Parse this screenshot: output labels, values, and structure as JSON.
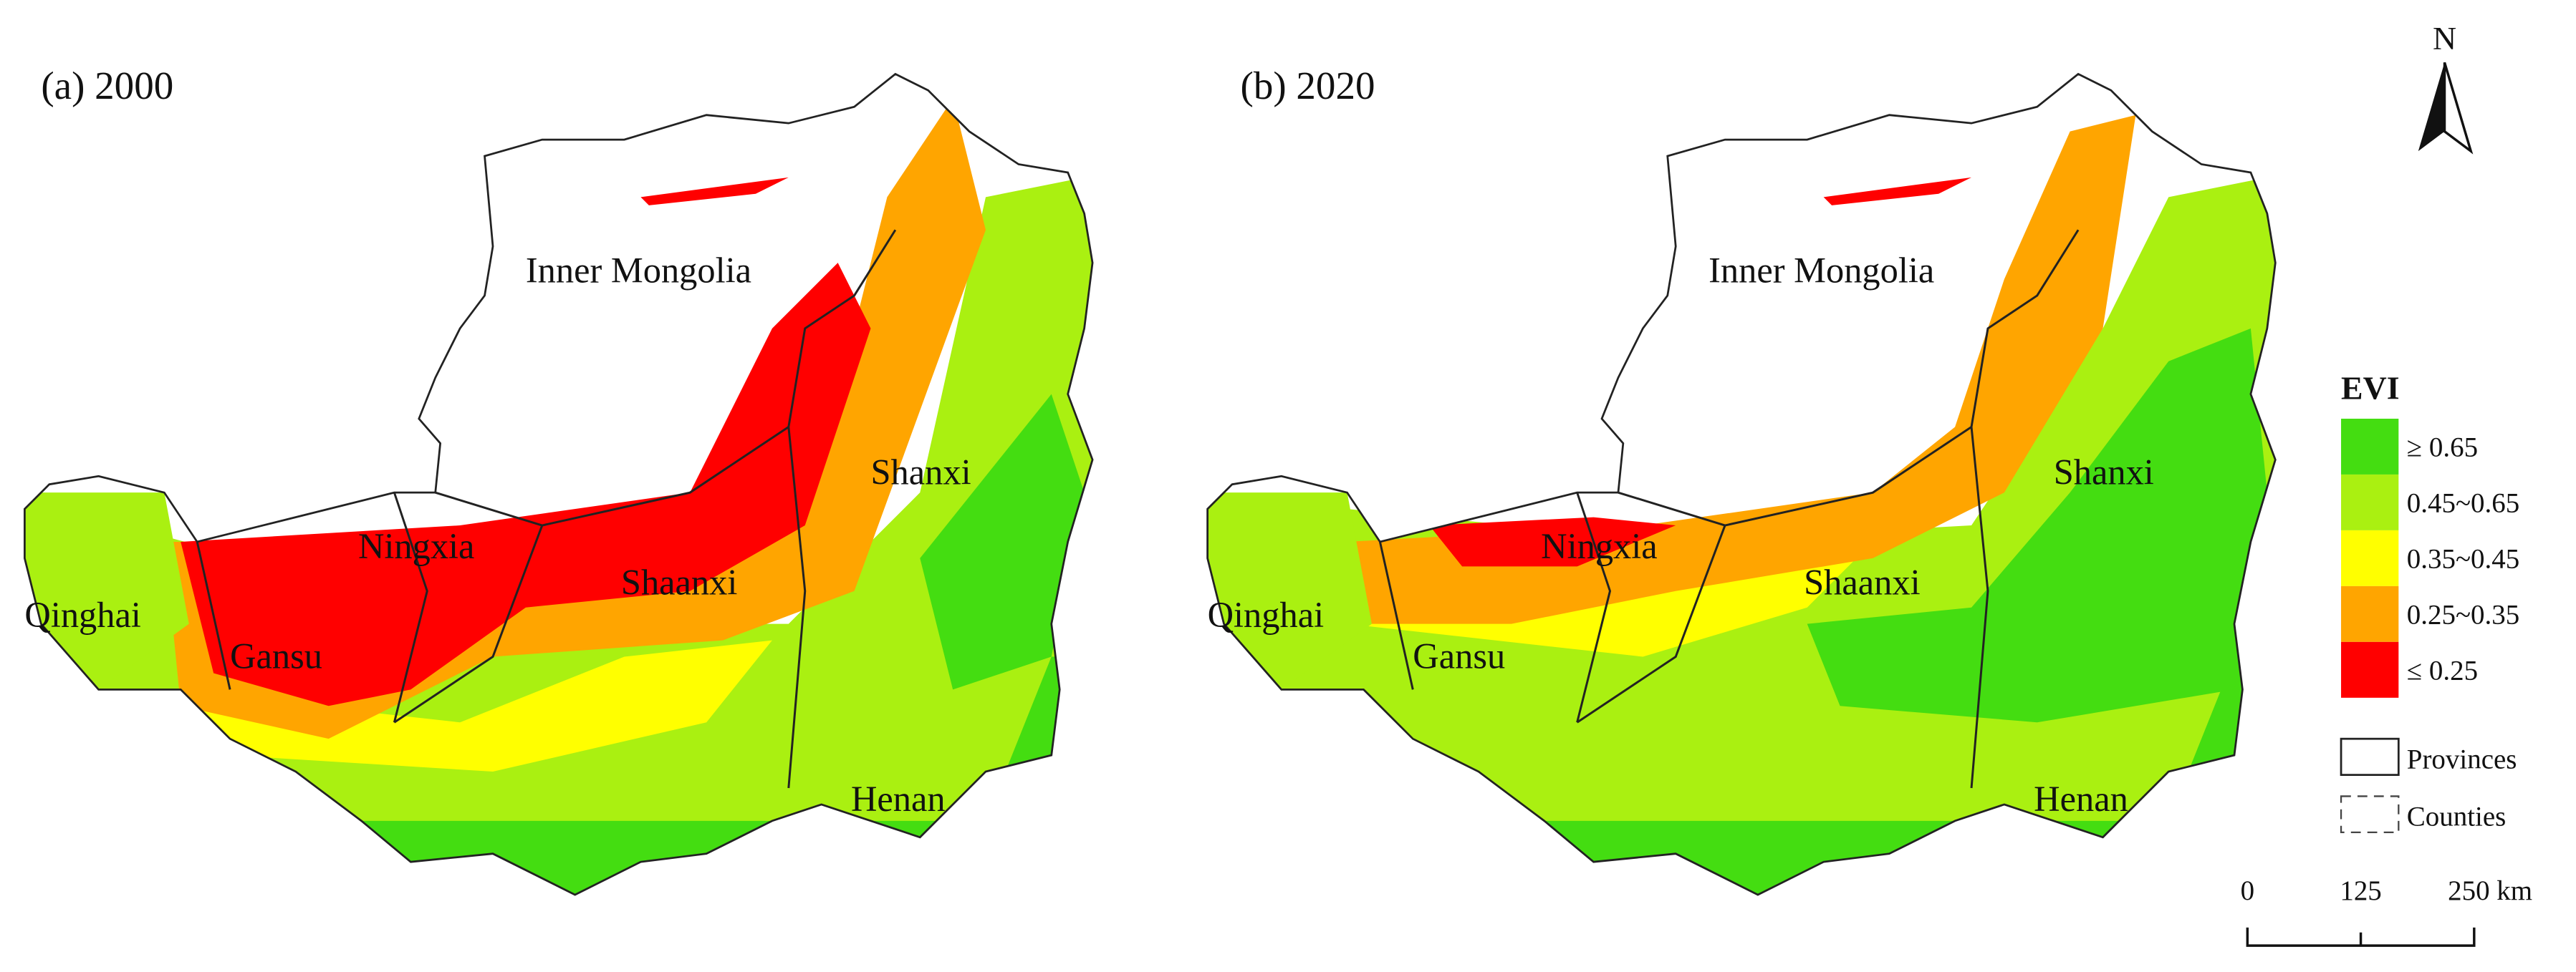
{
  "panels": [
    {
      "title": "(a) 2000",
      "regions": [
        "Inner Mongolia",
        "Shanxi",
        "Ningxia",
        "Shaanxi",
        "Qinghai",
        "Gansu",
        "Henan"
      ]
    },
    {
      "title": "(b) 2020",
      "regions": [
        "Inner Mongolia",
        "Shanxi",
        "Ningxia",
        "Shaanxi",
        "Qinghai",
        "Gansu",
        "Henan"
      ]
    }
  ],
  "north": "N",
  "legend": {
    "title": "EVI",
    "classes": [
      {
        "label": "≥ 0.65",
        "color": "#44dd11"
      },
      {
        "label": "0.45~0.65",
        "color": "#aaf011"
      },
      {
        "label": "0.35~0.45",
        "color": "#ffff00"
      },
      {
        "label": "0.25~0.35",
        "color": "#ffa500"
      },
      {
        "label": "≤ 0.25",
        "color": "#ff0000"
      }
    ],
    "boundaries": [
      "Provinces",
      "Counties"
    ]
  },
  "scale_bar": {
    "labels": [
      "0",
      "125",
      "250 km"
    ]
  }
}
